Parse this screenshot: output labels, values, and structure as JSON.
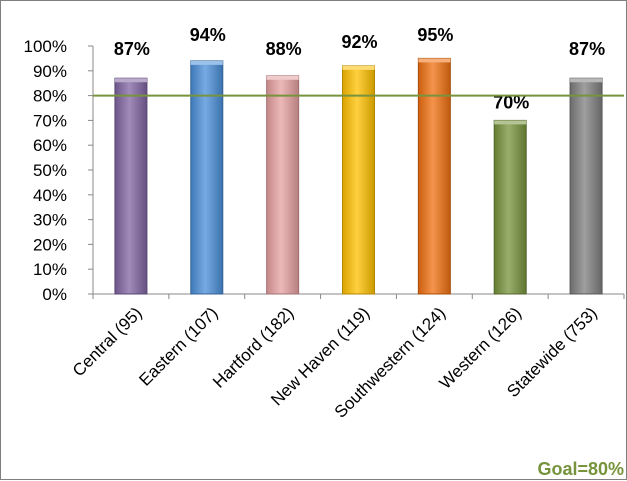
{
  "chart_data": {
    "type": "bar",
    "categories": [
      "Central (95)",
      "Eastern (107)",
      "Hartford (182)",
      "New Haven (119)",
      "Southwestern (124)",
      "Western (126)",
      "Statewide (753)"
    ],
    "values": [
      87,
      94,
      88,
      92,
      95,
      70,
      87
    ],
    "data_labels": [
      "87%",
      "94%",
      "88%",
      "92%",
      "95%",
      "70%",
      "87%"
    ],
    "colors": [
      "#8064a2",
      "#4a8ed8",
      "#e6a0a0",
      "#ffc000",
      "#f07010",
      "#77933c",
      "#7f7f7f"
    ],
    "ylim": [
      0,
      100
    ],
    "yticks": [
      "0%",
      "10%",
      "20%",
      "30%",
      "40%",
      "50%",
      "60%",
      "70%",
      "80%",
      "90%",
      "100%"
    ],
    "goal_value": 80,
    "goal_color": "#77933c",
    "goal_label": "Goal=80%",
    "grid": false,
    "title": "",
    "xlabel": "",
    "ylabel": ""
  }
}
